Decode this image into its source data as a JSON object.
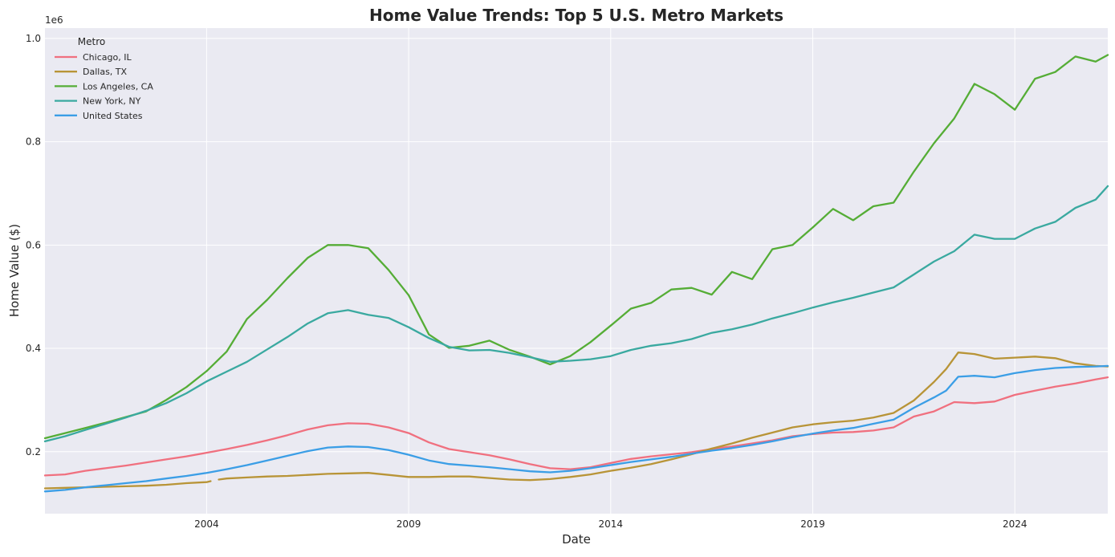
{
  "chart_data": {
    "type": "line",
    "title": "Home Value Trends: Top 5 U.S. Metro Markets",
    "xlabel": "Date",
    "ylabel": "Home Value ($)",
    "y_offset_label": "1e6",
    "xlim": [
      2000.0,
      2026.3
    ],
    "ylim": [
      0.08,
      1.02
    ],
    "x_ticks": [
      2004,
      2009,
      2014,
      2019,
      2024
    ],
    "x_tick_labels": [
      "2004",
      "2009",
      "2014",
      "2019",
      "2024"
    ],
    "y_ticks": [
      0.2,
      0.4,
      0.6,
      0.8,
      1.0
    ],
    "y_tick_labels": [
      "0.2",
      "0.4",
      "0.6",
      "0.8",
      "1.0"
    ],
    "grid": true,
    "legend": {
      "title": "Metro",
      "placement": "top-left"
    },
    "series": [
      {
        "name": "Chicago, IL",
        "color": "#f0707f",
        "points": [
          [
            2000.0,
            0.154
          ],
          [
            2000.5,
            0.156
          ],
          [
            2001.0,
            0.163
          ],
          [
            2001.5,
            0.168
          ],
          [
            2002.0,
            0.173
          ],
          [
            2002.5,
            0.179
          ],
          [
            2003.0,
            0.185
          ],
          [
            2003.5,
            0.191
          ],
          [
            2004.0,
            0.198
          ],
          [
            2004.5,
            0.205
          ],
          [
            2005.0,
            0.213
          ],
          [
            2005.5,
            0.222
          ],
          [
            2006.0,
            0.232
          ],
          [
            2006.5,
            0.243
          ],
          [
            2007.0,
            0.251
          ],
          [
            2007.5,
            0.255
          ],
          [
            2008.0,
            0.254
          ],
          [
            2008.5,
            0.247
          ],
          [
            2009.0,
            0.236
          ],
          [
            2009.5,
            0.218
          ],
          [
            2010.0,
            0.205
          ],
          [
            2010.5,
            0.199
          ],
          [
            2011.0,
            0.193
          ],
          [
            2011.5,
            0.185
          ],
          [
            2012.0,
            0.176
          ],
          [
            2012.5,
            0.168
          ],
          [
            2013.0,
            0.166
          ],
          [
            2013.5,
            0.17
          ],
          [
            2014.0,
            0.178
          ],
          [
            2014.5,
            0.186
          ],
          [
            2015.0,
            0.191
          ],
          [
            2015.5,
            0.195
          ],
          [
            2016.0,
            0.199
          ],
          [
            2016.5,
            0.205
          ],
          [
            2017.0,
            0.21
          ],
          [
            2017.5,
            0.216
          ],
          [
            2018.0,
            0.222
          ],
          [
            2018.5,
            0.23
          ],
          [
            2019.0,
            0.234
          ],
          [
            2019.5,
            0.237
          ],
          [
            2020.0,
            0.238
          ],
          [
            2020.5,
            0.241
          ],
          [
            2021.0,
            0.247
          ],
          [
            2021.5,
            0.268
          ],
          [
            2022.0,
            0.278
          ],
          [
            2022.5,
            0.296
          ],
          [
            2023.0,
            0.294
          ],
          [
            2023.5,
            0.297
          ],
          [
            2024.0,
            0.31
          ],
          [
            2024.5,
            0.318
          ],
          [
            2025.0,
            0.326
          ],
          [
            2025.5,
            0.332
          ],
          [
            2026.0,
            0.34
          ],
          [
            2026.3,
            0.344
          ]
        ]
      },
      {
        "name": "Dallas, TX",
        "color": "#b89437",
        "points": [
          [
            2000.0,
            0.129
          ],
          [
            2000.5,
            0.13
          ],
          [
            2001.0,
            0.131
          ],
          [
            2001.5,
            0.132
          ],
          [
            2002.0,
            0.133
          ],
          [
            2002.5,
            0.134
          ],
          [
            2003.0,
            0.136
          ],
          [
            2003.5,
            0.139
          ],
          [
            2004.0,
            0.141
          ],
          [
            2004.1,
            0.143
          ],
          null,
          [
            2004.3,
            0.146
          ],
          [
            2004.5,
            0.148
          ],
          [
            2005.0,
            0.15
          ],
          [
            2005.5,
            0.152
          ],
          [
            2006.0,
            0.153
          ],
          [
            2006.5,
            0.155
          ],
          [
            2007.0,
            0.157
          ],
          [
            2007.5,
            0.158
          ],
          [
            2008.0,
            0.159
          ],
          [
            2008.5,
            0.155
          ],
          [
            2009.0,
            0.151
          ],
          [
            2009.5,
            0.151
          ],
          [
            2010.0,
            0.152
          ],
          [
            2010.5,
            0.152
          ],
          [
            2011.0,
            0.149
          ],
          [
            2011.5,
            0.146
          ],
          [
            2012.0,
            0.145
          ],
          [
            2012.5,
            0.147
          ],
          [
            2013.0,
            0.151
          ],
          [
            2013.5,
            0.156
          ],
          [
            2014.0,
            0.163
          ],
          [
            2014.5,
            0.169
          ],
          [
            2015.0,
            0.176
          ],
          [
            2015.5,
            0.185
          ],
          [
            2016.0,
            0.195
          ],
          [
            2016.5,
            0.206
          ],
          [
            2017.0,
            0.216
          ],
          [
            2017.5,
            0.227
          ],
          [
            2018.0,
            0.237
          ],
          [
            2018.5,
            0.247
          ],
          [
            2019.0,
            0.253
          ],
          [
            2019.5,
            0.257
          ],
          [
            2020.0,
            0.26
          ],
          [
            2020.5,
            0.266
          ],
          [
            2021.0,
            0.275
          ],
          [
            2021.5,
            0.299
          ],
          [
            2022.0,
            0.335
          ],
          [
            2022.3,
            0.36
          ],
          [
            2022.6,
            0.392
          ],
          [
            2023.0,
            0.389
          ],
          [
            2023.5,
            0.38
          ],
          [
            2024.0,
            0.382
          ],
          [
            2024.5,
            0.384
          ],
          [
            2025.0,
            0.381
          ],
          [
            2025.5,
            0.371
          ],
          [
            2026.0,
            0.366
          ],
          [
            2026.3,
            0.365
          ]
        ]
      },
      {
        "name": "Los Angeles, CA",
        "color": "#55ad36",
        "points": [
          [
            2000.0,
            0.226
          ],
          [
            2000.5,
            0.236
          ],
          [
            2001.0,
            0.246
          ],
          [
            2001.5,
            0.256
          ],
          [
            2002.0,
            0.267
          ],
          [
            2002.5,
            0.278
          ],
          [
            2003.0,
            0.3
          ],
          [
            2003.5,
            0.325
          ],
          [
            2004.0,
            0.356
          ],
          [
            2004.5,
            0.394
          ],
          [
            2005.0,
            0.457
          ],
          [
            2005.5,
            0.494
          ],
          [
            2006.0,
            0.536
          ],
          [
            2006.5,
            0.575
          ],
          [
            2007.0,
            0.6
          ],
          [
            2007.5,
            0.6
          ],
          [
            2008.0,
            0.594
          ],
          [
            2008.5,
            0.552
          ],
          [
            2009.0,
            0.503
          ],
          [
            2009.5,
            0.427
          ],
          [
            2010.0,
            0.401
          ],
          [
            2010.5,
            0.405
          ],
          [
            2011.0,
            0.415
          ],
          [
            2011.5,
            0.397
          ],
          [
            2012.0,
            0.384
          ],
          [
            2012.5,
            0.369
          ],
          [
            2013.0,
            0.385
          ],
          [
            2013.5,
            0.412
          ],
          [
            2014.0,
            0.444
          ],
          [
            2014.5,
            0.477
          ],
          [
            2015.0,
            0.488
          ],
          [
            2015.5,
            0.514
          ],
          [
            2016.0,
            0.517
          ],
          [
            2016.5,
            0.504
          ],
          [
            2017.0,
            0.548
          ],
          [
            2017.5,
            0.534
          ],
          [
            2018.0,
            0.592
          ],
          [
            2018.5,
            0.6
          ],
          [
            2019.0,
            0.634
          ],
          [
            2019.5,
            0.67
          ],
          [
            2020.0,
            0.648
          ],
          [
            2020.5,
            0.675
          ],
          [
            2021.0,
            0.682
          ],
          [
            2021.5,
            0.742
          ],
          [
            2022.0,
            0.797
          ],
          [
            2022.5,
            0.845
          ],
          [
            2023.0,
            0.912
          ],
          [
            2023.5,
            0.892
          ],
          [
            2024.0,
            0.862
          ],
          [
            2024.5,
            0.922
          ],
          [
            2025.0,
            0.935
          ],
          [
            2025.5,
            0.965
          ],
          [
            2026.0,
            0.955
          ],
          [
            2026.3,
            0.968
          ]
        ]
      },
      {
        "name": "New York, NY",
        "color": "#3aa9a0",
        "points": [
          [
            2000.0,
            0.22
          ],
          [
            2000.5,
            0.23
          ],
          [
            2001.0,
            0.242
          ],
          [
            2001.5,
            0.254
          ],
          [
            2002.0,
            0.266
          ],
          [
            2002.5,
            0.279
          ],
          [
            2003.0,
            0.294
          ],
          [
            2003.5,
            0.313
          ],
          [
            2004.0,
            0.336
          ],
          [
            2004.5,
            0.355
          ],
          [
            2005.0,
            0.374
          ],
          [
            2005.5,
            0.398
          ],
          [
            2006.0,
            0.422
          ],
          [
            2006.5,
            0.448
          ],
          [
            2007.0,
            0.468
          ],
          [
            2007.5,
            0.474
          ],
          [
            2008.0,
            0.465
          ],
          [
            2008.5,
            0.459
          ],
          [
            2009.0,
            0.441
          ],
          [
            2009.5,
            0.42
          ],
          [
            2010.0,
            0.403
          ],
          [
            2010.5,
            0.396
          ],
          [
            2011.0,
            0.397
          ],
          [
            2011.5,
            0.391
          ],
          [
            2012.0,
            0.383
          ],
          [
            2012.5,
            0.374
          ],
          [
            2013.0,
            0.376
          ],
          [
            2013.5,
            0.379
          ],
          [
            2014.0,
            0.385
          ],
          [
            2014.5,
            0.397
          ],
          [
            2015.0,
            0.405
          ],
          [
            2015.5,
            0.41
          ],
          [
            2016.0,
            0.418
          ],
          [
            2016.5,
            0.43
          ],
          [
            2017.0,
            0.437
          ],
          [
            2017.5,
            0.446
          ],
          [
            2018.0,
            0.458
          ],
          [
            2018.5,
            0.468
          ],
          [
            2019.0,
            0.479
          ],
          [
            2019.5,
            0.489
          ],
          [
            2020.0,
            0.498
          ],
          [
            2020.5,
            0.508
          ],
          [
            2021.0,
            0.518
          ],
          [
            2021.5,
            0.543
          ],
          [
            2022.0,
            0.568
          ],
          [
            2022.5,
            0.588
          ],
          [
            2023.0,
            0.62
          ],
          [
            2023.5,
            0.612
          ],
          [
            2024.0,
            0.612
          ],
          [
            2024.5,
            0.632
          ],
          [
            2025.0,
            0.645
          ],
          [
            2025.5,
            0.672
          ],
          [
            2026.0,
            0.688
          ],
          [
            2026.3,
            0.714
          ]
        ]
      },
      {
        "name": "United States",
        "color": "#3b9ee6",
        "points": [
          [
            2000.0,
            0.123
          ],
          [
            2000.5,
            0.126
          ],
          [
            2001.0,
            0.131
          ],
          [
            2001.5,
            0.135
          ],
          [
            2002.0,
            0.139
          ],
          [
            2002.5,
            0.143
          ],
          [
            2003.0,
            0.148
          ],
          [
            2003.5,
            0.153
          ],
          [
            2004.0,
            0.159
          ],
          [
            2004.5,
            0.166
          ],
          [
            2005.0,
            0.174
          ],
          [
            2005.5,
            0.183
          ],
          [
            2006.0,
            0.192
          ],
          [
            2006.5,
            0.201
          ],
          [
            2007.0,
            0.208
          ],
          [
            2007.5,
            0.21
          ],
          [
            2008.0,
            0.209
          ],
          [
            2008.5,
            0.203
          ],
          [
            2009.0,
            0.194
          ],
          [
            2009.5,
            0.183
          ],
          [
            2010.0,
            0.176
          ],
          [
            2010.5,
            0.173
          ],
          [
            2011.0,
            0.17
          ],
          [
            2011.5,
            0.166
          ],
          [
            2012.0,
            0.162
          ],
          [
            2012.5,
            0.16
          ],
          [
            2013.0,
            0.163
          ],
          [
            2013.5,
            0.168
          ],
          [
            2014.0,
            0.174
          ],
          [
            2014.5,
            0.18
          ],
          [
            2015.0,
            0.185
          ],
          [
            2015.5,
            0.19
          ],
          [
            2016.0,
            0.196
          ],
          [
            2016.5,
            0.202
          ],
          [
            2017.0,
            0.207
          ],
          [
            2017.5,
            0.213
          ],
          [
            2018.0,
            0.22
          ],
          [
            2018.5,
            0.228
          ],
          [
            2019.0,
            0.235
          ],
          [
            2019.5,
            0.241
          ],
          [
            2020.0,
            0.246
          ],
          [
            2020.5,
            0.254
          ],
          [
            2021.0,
            0.262
          ],
          [
            2021.5,
            0.285
          ],
          [
            2022.0,
            0.305
          ],
          [
            2022.3,
            0.318
          ],
          [
            2022.6,
            0.345
          ],
          [
            2023.0,
            0.347
          ],
          [
            2023.5,
            0.344
          ],
          [
            2024.0,
            0.352
          ],
          [
            2024.5,
            0.358
          ],
          [
            2025.0,
            0.362
          ],
          [
            2025.5,
            0.364
          ],
          [
            2026.0,
            0.365
          ],
          [
            2026.3,
            0.366
          ]
        ]
      }
    ]
  }
}
